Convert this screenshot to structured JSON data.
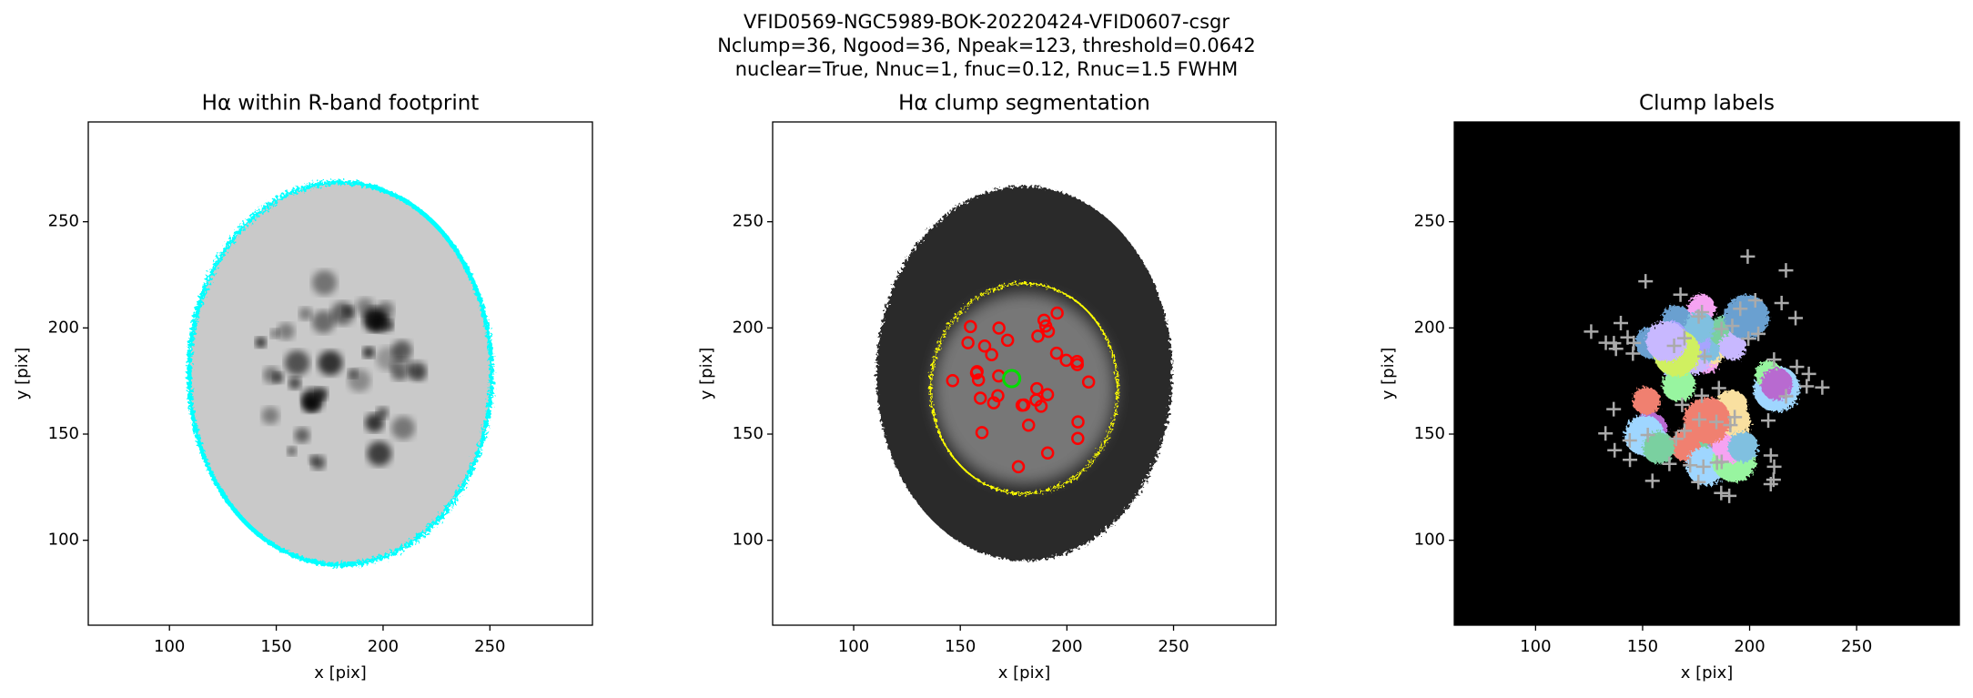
{
  "suptitle": [
    "VFID0569-NGC5989-BOK-20220424-VFID0607-csgr",
    "Nclump=36, Ngood=36, Npeak=123, threshold=0.0642",
    "nuclear=True, Nnuc=1, fnuc=0.12, Rnuc=1.5 FWHM"
  ],
  "chart_data": [
    {
      "type": "image",
      "title": "Hα within R-band footprint",
      "xlabel": "x [pix]",
      "ylabel": "y [pix]",
      "xlim": [
        62,
        298
      ],
      "ylim": [
        60,
        297
      ],
      "xticks": [
        100,
        150,
        200,
        250
      ],
      "yticks": [
        100,
        150,
        200,
        250
      ]
    },
    {
      "type": "image",
      "title": "Hα clump segmentation",
      "xlabel": "x [pix]",
      "ylabel": "y [pix]",
      "xlim": [
        62,
        298
      ],
      "ylim": [
        60,
        297
      ],
      "xticks": [
        100,
        150,
        200,
        250
      ],
      "yticks": [
        100,
        150,
        200,
        250
      ]
    },
    {
      "type": "image",
      "title": "Clump labels",
      "xlabel": "x [pix]",
      "ylabel": "y [pix]",
      "xlim": [
        62,
        298
      ],
      "ylim": [
        60,
        297
      ],
      "xticks": [
        100,
        150,
        200,
        250
      ],
      "yticks": [
        100,
        150,
        200,
        250
      ]
    }
  ]
}
